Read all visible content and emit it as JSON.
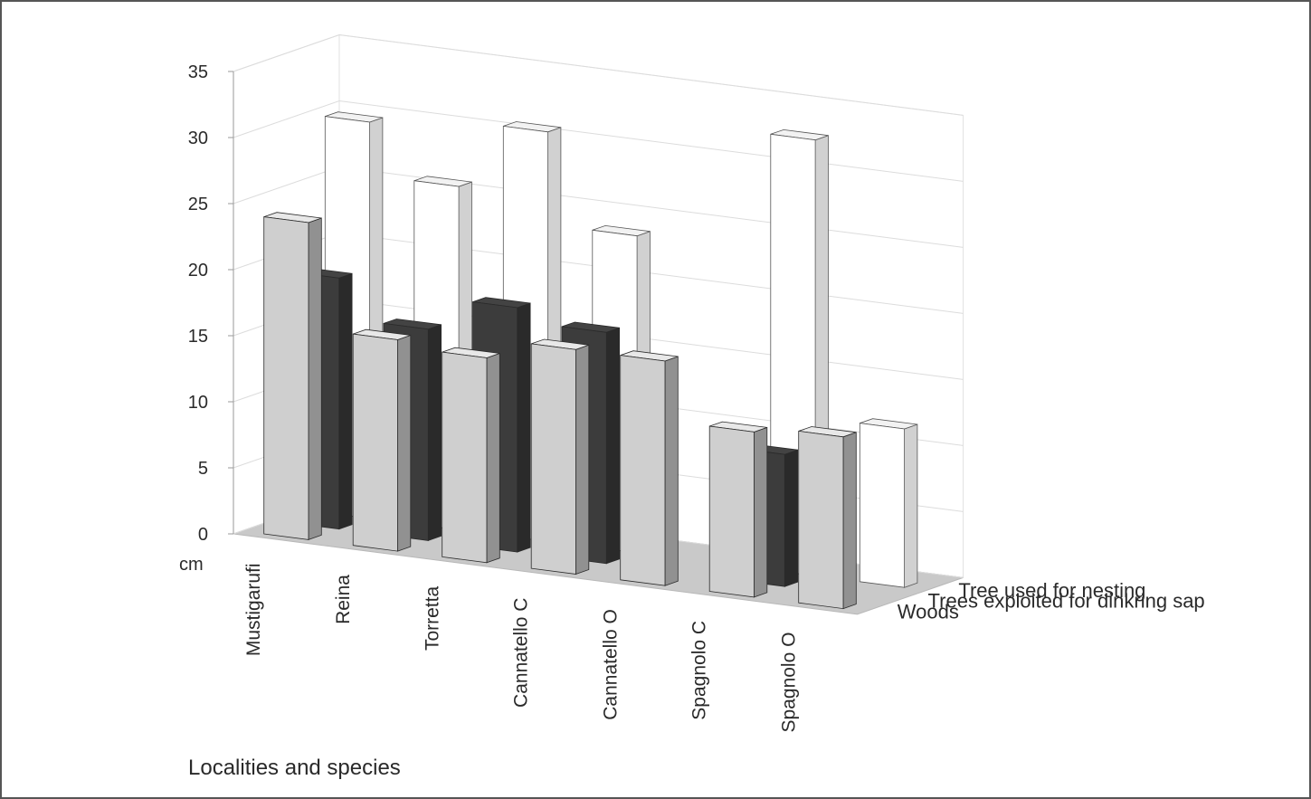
{
  "chart_data": {
    "type": "bar",
    "variant": "3d-column",
    "title": "",
    "xlabel": "Localities and species",
    "ylabel": "cm",
    "ylim": [
      0,
      35
    ],
    "yticks": [
      0,
      5,
      10,
      15,
      20,
      25,
      30,
      35
    ],
    "grid": true,
    "categories": [
      "Mustigarufi",
      "Reina",
      "Torretta",
      "Cannatello C",
      "Cannatello O",
      "Spagnolo C",
      "Spagnolo O"
    ],
    "series": [
      {
        "name": "Woods",
        "color": "#cfcfcf",
        "values": [
          24,
          16,
          15.5,
          17,
          17,
          12.5,
          13
        ]
      },
      {
        "name": "Trees exploited for dinkring sap",
        "color": "#3c3c3c",
        "values": [
          19,
          16,
          18.5,
          17.5,
          null,
          10,
          null
        ]
      },
      {
        "name": "Tree used for nesting",
        "color": "#ffffff",
        "values": [
          30,
          26,
          31,
          24,
          null,
          33,
          12
        ]
      }
    ]
  }
}
